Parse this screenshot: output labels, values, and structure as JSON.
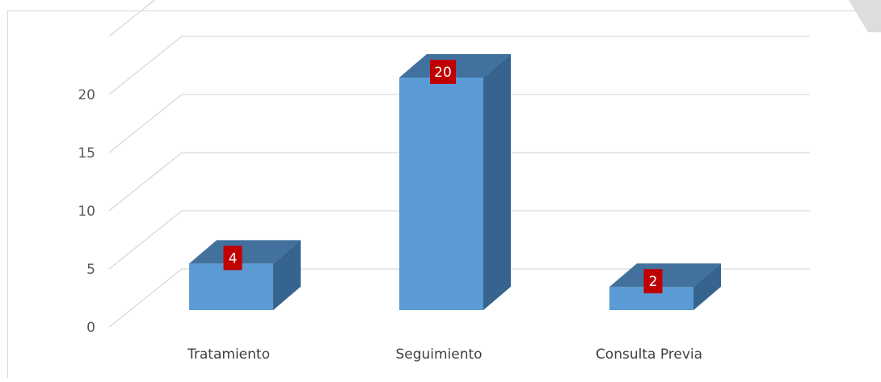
{
  "chart_data": {
    "type": "bar",
    "style": "3d-column",
    "title": "",
    "xlabel": "",
    "ylabel": "",
    "categories": [
      "Tratamiento",
      "Seguimiento",
      "Consulta Previa"
    ],
    "values": [
      4,
      20,
      2
    ],
    "data_labels": [
      "4",
      "20",
      "2"
    ],
    "ylim": [
      0,
      25
    ],
    "yticks": [
      "0",
      "5",
      "10",
      "15",
      "20"
    ],
    "grid": true,
    "legend": "none",
    "colors": {
      "bar_front": "#5B9BD5",
      "bar_top": "#41719C",
      "bar_side": "#36648E",
      "data_label_bg": "#C00000",
      "gridline": "#D9D9D9"
    }
  }
}
